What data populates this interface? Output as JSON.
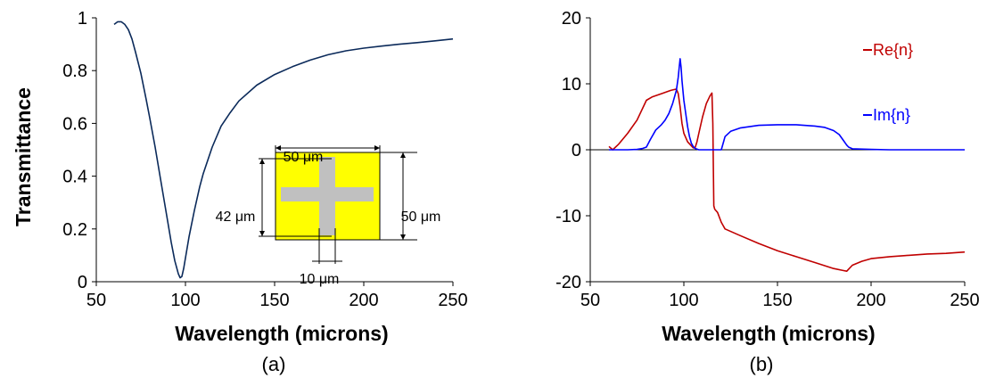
{
  "chart_data": [
    {
      "type": "line",
      "panel_label": "(a)",
      "xlabel": "Wavelength (microns)",
      "ylabel": "Transmittance",
      "xlim": [
        50,
        250
      ],
      "ylim": [
        0,
        1
      ],
      "xticks": [
        "50",
        "100",
        "150",
        "200",
        "250"
      ],
      "yticks": [
        "0",
        "0.2",
        "0.4",
        "0.6",
        "0.8",
        "1"
      ],
      "grid": false,
      "series": [
        {
          "color": "#0b2a5a",
          "x": [
            60,
            62,
            64,
            66,
            68,
            70,
            72,
            75,
            78,
            80,
            83,
            86,
            88,
            90,
            92,
            94,
            96,
            97,
            98,
            99,
            100,
            102,
            105,
            108,
            110,
            115,
            120,
            125,
            130,
            140,
            150,
            160,
            170,
            180,
            190,
            200,
            210,
            220,
            230,
            240,
            250
          ],
          "y": [
            0.975,
            0.985,
            0.985,
            0.975,
            0.955,
            0.92,
            0.87,
            0.79,
            0.69,
            0.62,
            0.51,
            0.39,
            0.31,
            0.23,
            0.15,
            0.08,
            0.03,
            0.015,
            0.02,
            0.05,
            0.09,
            0.17,
            0.27,
            0.36,
            0.41,
            0.51,
            0.59,
            0.64,
            0.685,
            0.745,
            0.785,
            0.815,
            0.84,
            0.86,
            0.875,
            0.885,
            0.893,
            0.9,
            0.906,
            0.913,
            0.92
          ]
        }
      ],
      "inset": {
        "colors": {
          "square": "#ffff00",
          "cross": "#c0c0c0"
        },
        "labels": {
          "top": "50 μm",
          "left": "42 μm",
          "right": "50 μm",
          "bottom": "10 μm"
        }
      }
    },
    {
      "type": "line",
      "panel_label": "(b)",
      "xlabel": "Wavelength (microns)",
      "ylabel": "",
      "xlim": [
        50,
        250
      ],
      "ylim": [
        -20,
        20
      ],
      "xticks": [
        "50",
        "100",
        "150",
        "200",
        "250"
      ],
      "yticks": [
        "-20",
        "-10",
        "0",
        "10",
        "20"
      ],
      "grid": false,
      "legend": "top-right",
      "series": [
        {
          "name": "Re{n}",
          "color": "#c00000",
          "x": [
            60,
            62,
            65,
            70,
            75,
            80,
            83,
            88,
            93,
            96,
            97,
            98,
            99,
            100,
            102,
            104,
            105,
            106,
            107,
            108,
            110,
            112,
            114,
            115,
            115.5,
            116,
            116.1,
            116.5,
            118,
            120,
            122,
            130,
            140,
            150,
            160,
            170,
            180,
            185,
            187,
            188,
            190,
            195,
            200,
            210,
            220,
            230,
            240,
            250
          ],
          "y": [
            0.5,
            0,
            0.8,
            2.5,
            4.5,
            7.5,
            8,
            8.5,
            9,
            9.2,
            8.5,
            6.5,
            4,
            2.5,
            1.2,
            0.6,
            0.3,
            0.3,
            1.2,
            2.5,
            5,
            7,
            8.2,
            8.6,
            4,
            -8.5,
            -8.6,
            -9,
            -9.5,
            -11,
            -12,
            -13,
            -14.2,
            -15.3,
            -16.2,
            -17.1,
            -18,
            -18.3,
            -18.4,
            -18.1,
            -17.5,
            -16.9,
            -16.5,
            -16.2,
            -16,
            -15.8,
            -15.7,
            -15.5
          ]
        },
        {
          "name": "Im{n}",
          "color": "#0000ff",
          "x": [
            60,
            65,
            70,
            75,
            78,
            80,
            82,
            85,
            88,
            90,
            92,
            94,
            96,
            97,
            97.5,
            98,
            98.5,
            99,
            100,
            101,
            102,
            103,
            104,
            105,
            106,
            108,
            110,
            115,
            118,
            120,
            121,
            122,
            125,
            130,
            140,
            150,
            160,
            170,
            175,
            180,
            183,
            185,
            187,
            188,
            190,
            200,
            210,
            220,
            230,
            240,
            250
          ],
          "y": [
            0,
            0,
            0,
            0.05,
            0.2,
            0.4,
            1.5,
            3,
            3.8,
            4.5,
            5.5,
            7,
            9,
            11,
            12.5,
            13.8,
            12.5,
            10.5,
            7.5,
            5.5,
            3.5,
            2,
            1,
            0.5,
            0.2,
            0,
            0,
            0,
            0,
            0,
            1,
            2,
            2.8,
            3.3,
            3.7,
            3.8,
            3.8,
            3.6,
            3.4,
            2.9,
            2.3,
            1.5,
            0.7,
            0.4,
            0.15,
            0.05,
            0,
            0,
            0,
            0,
            0
          ]
        }
      ]
    }
  ]
}
